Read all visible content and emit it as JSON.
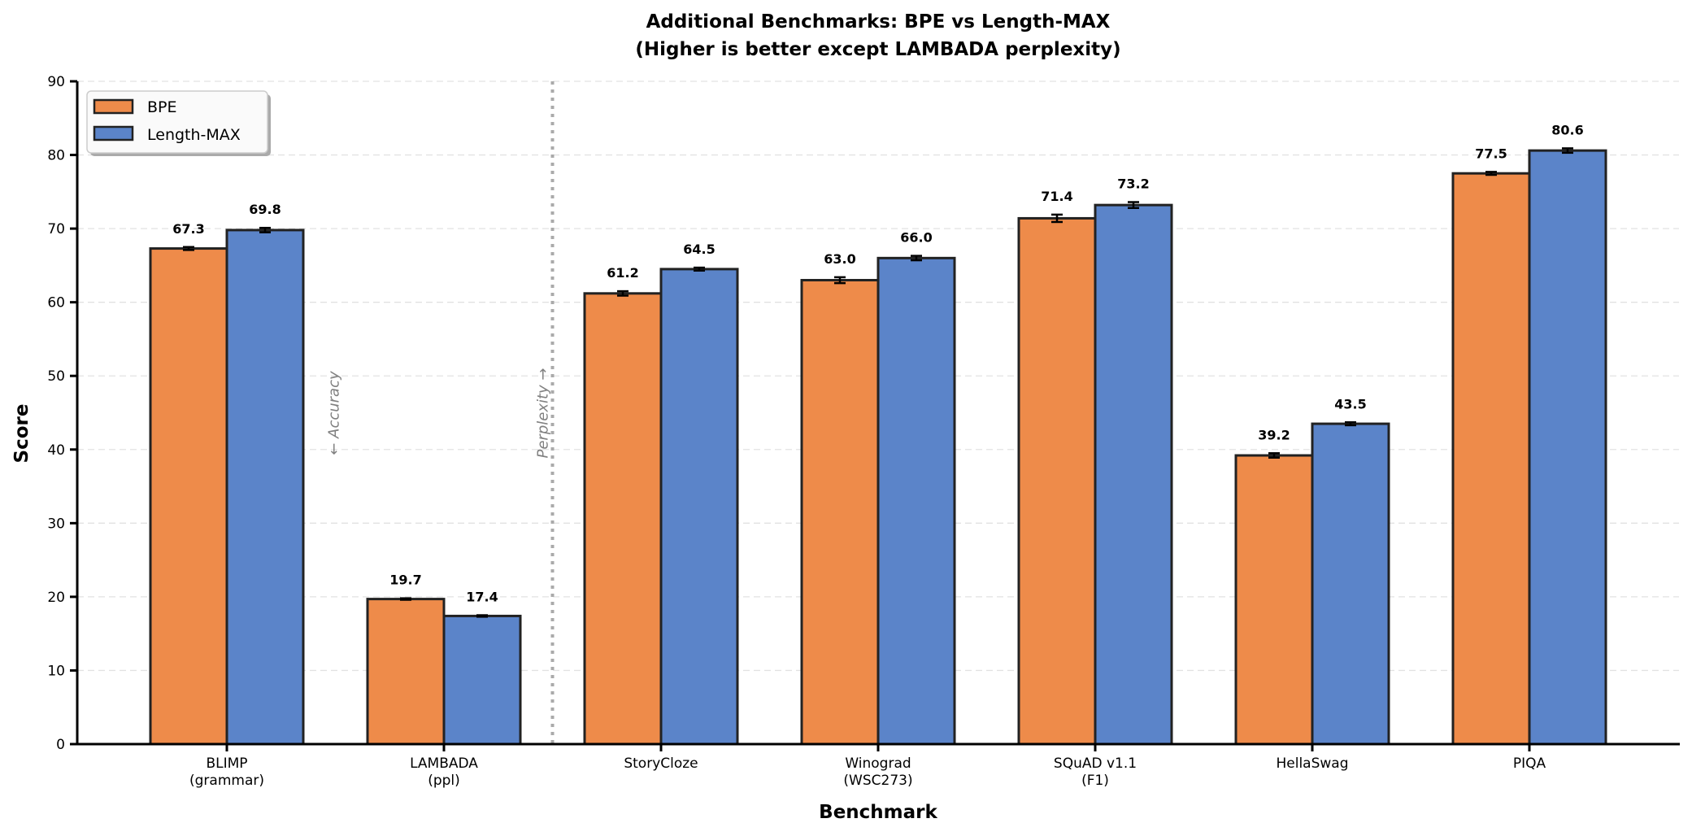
{
  "chart_data": {
    "type": "bar",
    "title": "Additional Benchmarks: BPE vs Length-MAX",
    "subtitle": "(Higher is better except LAMBADA perplexity)",
    "xlabel": "Benchmark",
    "ylabel": "Score",
    "ylim": [
      0,
      90
    ],
    "yticks": [
      0,
      10,
      20,
      30,
      40,
      50,
      60,
      70,
      80,
      90
    ],
    "grid": "y dashed",
    "legend_position": "top-left",
    "categories": [
      [
        "BLIMP",
        "(grammar)"
      ],
      [
        "LAMBADA",
        "(ppl)"
      ],
      [
        "StoryCloze"
      ],
      [
        "Winograd",
        "(WSC273)"
      ],
      [
        "SQuAD v1.1",
        "(F1)"
      ],
      [
        "HellaSwag"
      ],
      [
        "PIQA"
      ]
    ],
    "series": [
      {
        "name": "BPE",
        "color": "#ee8b4a",
        "values": [
          67.3,
          19.7,
          61.2,
          63.0,
          71.4,
          39.2,
          77.5
        ],
        "errors": [
          0.2,
          0.1,
          0.3,
          0.4,
          0.5,
          0.3,
          0.2
        ]
      },
      {
        "name": "Length-MAX",
        "color": "#5b84c9",
        "values": [
          69.8,
          17.4,
          64.5,
          66.0,
          73.2,
          43.5,
          80.6
        ],
        "errors": [
          0.3,
          0.1,
          0.2,
          0.3,
          0.4,
          0.2,
          0.3
        ]
      }
    ],
    "annotations": {
      "left_of_divider": "← Accuracy",
      "right_of_divider": "Perplexity →"
    },
    "divider_between": [
      "LAMBADA",
      "StoryCloze"
    ]
  }
}
